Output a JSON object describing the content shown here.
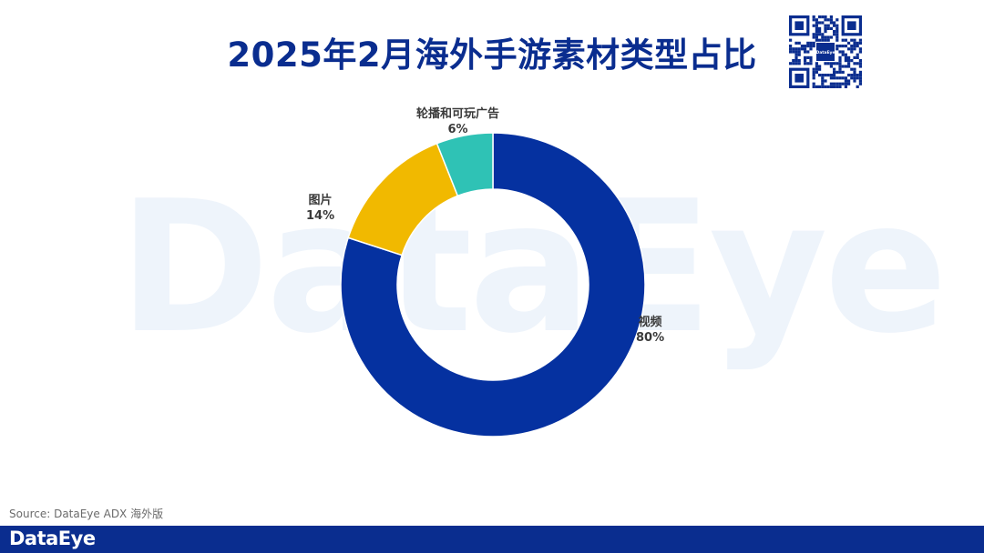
{
  "title": "2025年2月海外手游素材类型占比",
  "watermark": "DataEye",
  "qr_badge": "DataEye",
  "colors": {
    "brand": "#0a2d8f",
    "video": "#0531a0",
    "image": "#f1b900",
    "playable": "#2fc2b5"
  },
  "chart_data": {
    "type": "pie",
    "donut": true,
    "title": "2025年2月海外手游素材类型占比",
    "slices": [
      {
        "label": "视频",
        "value": 80,
        "display": "80%",
        "color": "#0531a0"
      },
      {
        "label": "图片",
        "value": 14,
        "display": "14%",
        "color": "#f1b900"
      },
      {
        "label": "轮播和可玩广告",
        "value": 6,
        "display": "6%",
        "color": "#2fc2b5"
      }
    ]
  },
  "source": "Source: DataEye ADX 海外版",
  "footer": {
    "logo": "DataEye"
  }
}
